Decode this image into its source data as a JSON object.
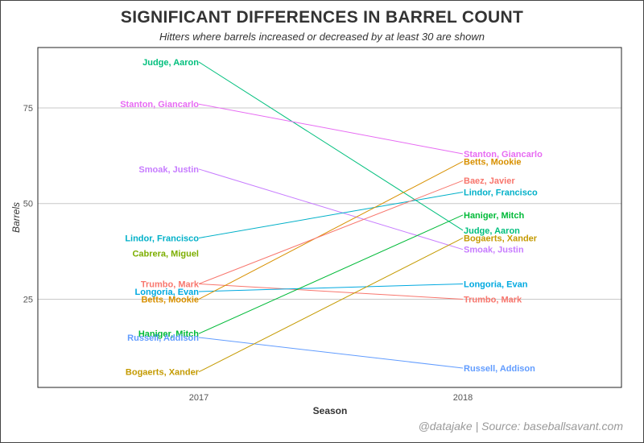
{
  "title": "SIGNIFICANT DIFFERENCES IN BARREL COUNT",
  "subtitle": "Hitters where barrels increased or decreased by at least 30 are shown",
  "caption": "@datajake | Source: baseballsavant.com",
  "chart_data": {
    "type": "line",
    "title": "SIGNIFICANT DIFFERENCES IN BARREL COUNT",
    "subtitle": "Hitters where barrels increased or decreased by at least 30 are shown",
    "xlabel": "Season",
    "ylabel": "Barrels",
    "x": [
      "2017",
      "2018"
    ],
    "yticks": [
      25,
      50,
      75
    ],
    "ylim": [
      0,
      88
    ],
    "grid": "horizontal major lines",
    "legend": "none (direct labels at both ends)",
    "series": [
      {
        "name": "Judge, Aaron",
        "color": "#00BF7D",
        "values": [
          87,
          43
        ]
      },
      {
        "name": "Stanton, Giancarlo",
        "color": "#E76BF3",
        "values": [
          76,
          63
        ]
      },
      {
        "name": "Smoak, Justin",
        "color": "#C77CFF",
        "values": [
          59,
          38
        ]
      },
      {
        "name": "Lindor, Francisco",
        "color": "#00B0C8",
        "values": [
          41,
          53
        ]
      },
      {
        "name": "Cabrera, Miguel",
        "color": "#7CAE00",
        "values": [
          37,
          null
        ]
      },
      {
        "name": "Trumbo, Mark",
        "color": "#F8766D",
        "values": [
          29,
          25
        ]
      },
      {
        "name": "Longoria, Evan",
        "color": "#00A9E0",
        "values": [
          27,
          29
        ]
      },
      {
        "name": "Betts, Mookie",
        "color": "#D89000",
        "values": [
          25,
          61
        ]
      },
      {
        "name": "Haniger, Mitch",
        "color": "#00BA38",
        "values": [
          16,
          47
        ]
      },
      {
        "name": "Russell, Addison",
        "color": "#619CFF",
        "values": [
          15,
          7
        ]
      },
      {
        "name": "Bogaerts, Xander",
        "color": "#C49A00",
        "values": [
          6,
          41
        ]
      },
      {
        "name": "Baez, Javier",
        "color": "#F8766D",
        "values": [
          29,
          56
        ]
      }
    ],
    "labels_2017": [
      {
        "text": "Judge, Aaron",
        "color": "#00BF7D",
        "y": 87
      },
      {
        "text": "Stanton, Giancarlo",
        "color": "#E76BF3",
        "y": 76
      },
      {
        "text": "Smoak, Justin",
        "color": "#C77CFF",
        "y": 59
      },
      {
        "text": "Lindor, Francisco",
        "color": "#00B0C8",
        "y": 41
      },
      {
        "text": "Cabrera, Miguel",
        "color": "#7CAE00",
        "y": 37
      },
      {
        "text": "Trumbo, Mark",
        "color": "#F8766D",
        "y": 29
      },
      {
        "text": "Longoria, Evan",
        "color": "#00A9E0",
        "y": 27
      },
      {
        "text": "Betts, Mookie",
        "color": "#D89000",
        "y": 25
      },
      {
        "text": "Haniger, Mitch",
        "color": "#00BA38",
        "y": 16
      },
      {
        "text": "Russell, Addison",
        "color": "#619CFF",
        "y": 15
      },
      {
        "text": "Bogaerts, Xander",
        "color": "#C49A00",
        "y": 6
      }
    ],
    "labels_2018": [
      {
        "text": "Stanton, Giancarlo",
        "color": "#E76BF3",
        "y": 63
      },
      {
        "text": "Betts, Mookie",
        "color": "#D89000",
        "y": 61
      },
      {
        "text": "Baez, Javier",
        "color": "#F8766D",
        "y": 56
      },
      {
        "text": "Lindor, Francisco",
        "color": "#00B0C8",
        "y": 53
      },
      {
        "text": "Haniger, Mitch",
        "color": "#00BA38",
        "y": 47
      },
      {
        "text": "Judge, Aaron",
        "color": "#00BF7D",
        "y": 43
      },
      {
        "text": "Bogaerts, Xander",
        "color": "#C49A00",
        "y": 41
      },
      {
        "text": "Smoak, Justin",
        "color": "#C77CFF",
        "y": 38
      },
      {
        "text": "Longoria, Evan",
        "color": "#00A9E0",
        "y": 29
      },
      {
        "text": "Trumbo, Mark",
        "color": "#F8766D",
        "y": 25
      },
      {
        "text": "Russell, Addison",
        "color": "#619CFF",
        "y": 7
      }
    ]
  }
}
